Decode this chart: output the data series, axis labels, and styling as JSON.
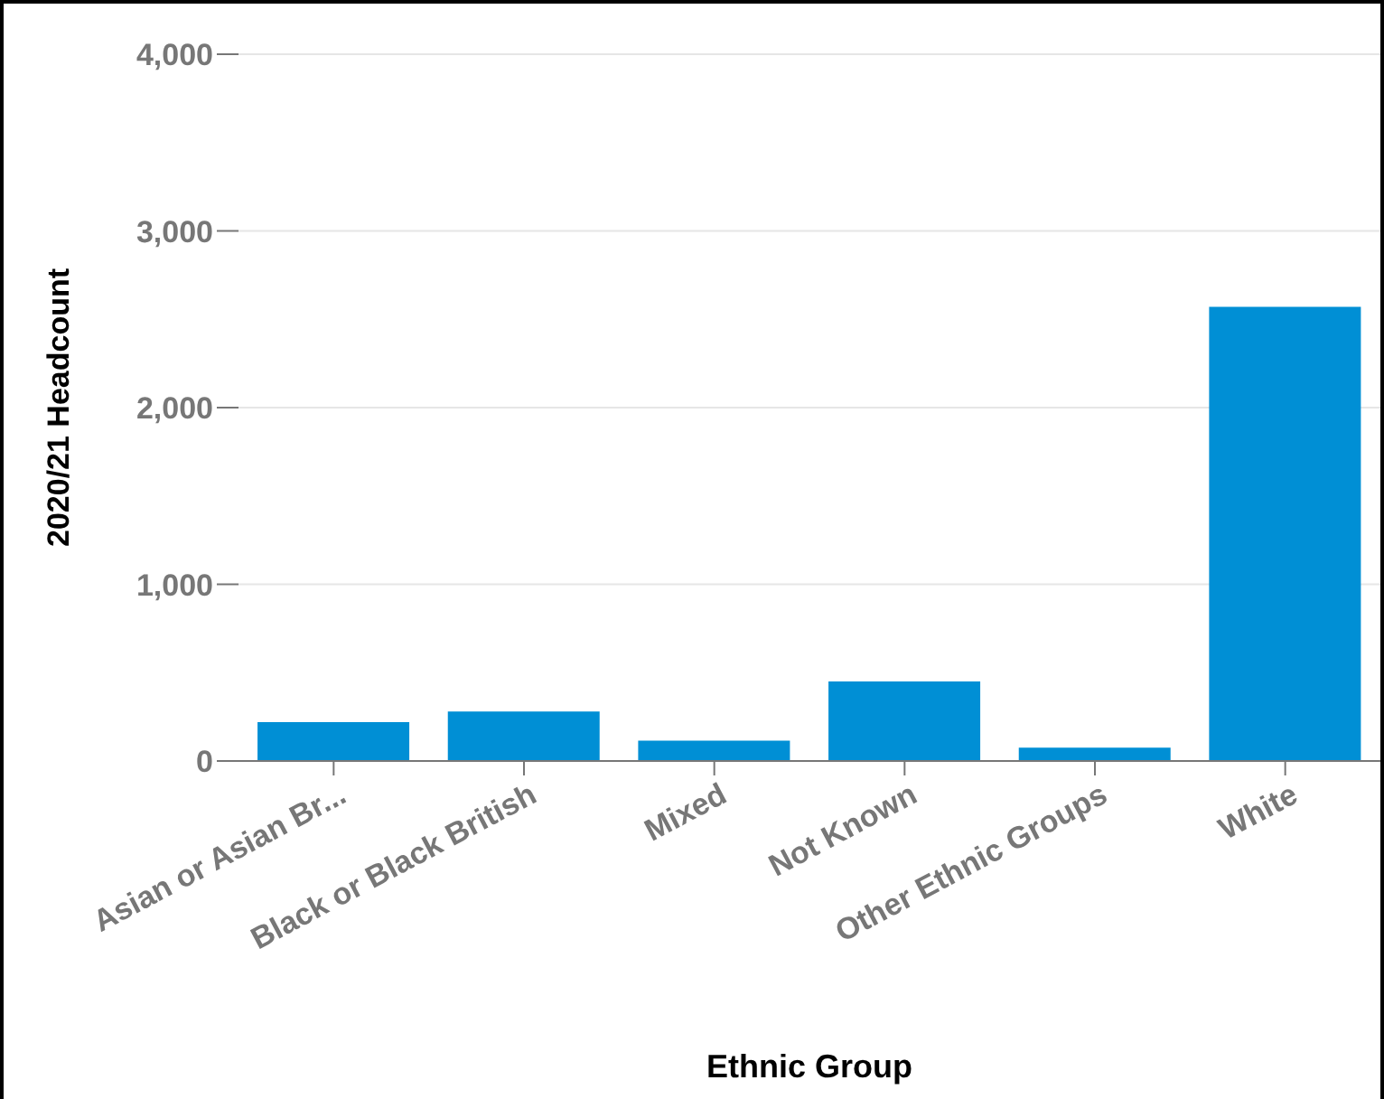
{
  "chart_data": {
    "type": "bar",
    "xlabel": "Ethnic Group",
    "ylabel": "2020/21 Headcount",
    "categories": [
      "Asian or Asian Br...",
      "Black or Black British",
      "Mixed",
      "Not Known",
      "Other Ethnic Groups",
      "White"
    ],
    "values": [
      220,
      280,
      115,
      450,
      75,
      2570
    ],
    "color": "#008fd5",
    "ylim": [
      0,
      4000
    ],
    "yticks": [
      {
        "value": 0,
        "label": "0"
      },
      {
        "value": 1000,
        "label": "1,000"
      },
      {
        "value": 2000,
        "label": "2,000"
      },
      {
        "value": 3000,
        "label": "3,000"
      },
      {
        "value": 4000,
        "label": "4,000"
      }
    ],
    "grid": "y",
    "legend": false
  }
}
